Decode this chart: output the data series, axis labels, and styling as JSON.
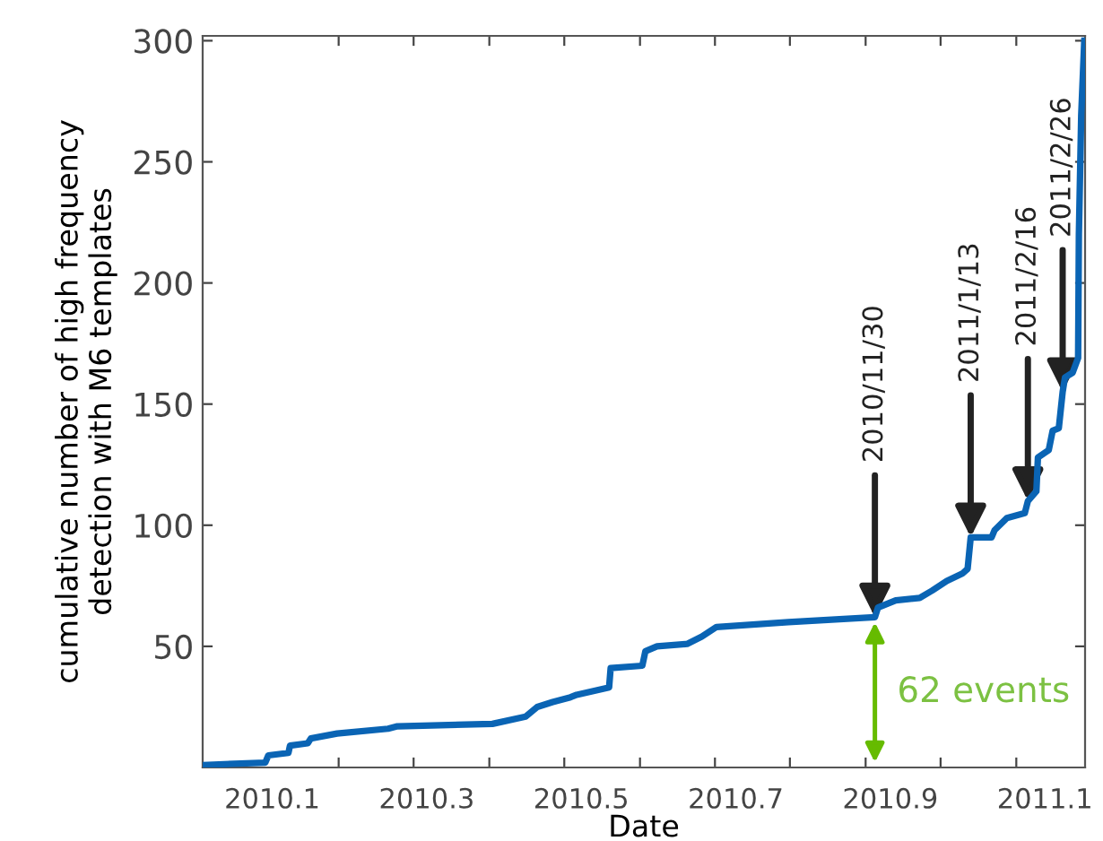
{
  "chart_data": {
    "type": "line",
    "xlabel": "Date",
    "ylabel": "cumulative number of high frequency\ndetection with M6 templates",
    "x": [
      2010.01,
      2010.091,
      2010.095,
      2010.121,
      2010.123,
      2010.146,
      2010.15,
      2010.184,
      2010.25,
      2010.262,
      2010.385,
      2010.428,
      2010.443,
      2010.463,
      2010.486,
      2010.494,
      2010.536,
      2010.538,
      2010.579,
      2010.583,
      2010.598,
      2010.637,
      2010.656,
      2010.675,
      2010.768,
      2010.88,
      2010.884,
      2010.907,
      2010.938,
      2010.954,
      2010.973,
      2010.993,
      2011.0,
      2011.004,
      2011.031,
      2011.035,
      2011.051,
      2011.074,
      2011.078,
      2011.089,
      2011.091,
      2011.105,
      2011.11,
      2011.118,
      2011.123,
      2011.126,
      2011.136,
      2011.143,
      2011.144,
      2011.147,
      2011.151
    ],
    "series": [
      {
        "color": "#0a64b4",
        "values": [
          1,
          2,
          5,
          6,
          9,
          10,
          12,
          14,
          16,
          17,
          18,
          21,
          25,
          27,
          29,
          30,
          33,
          41,
          42,
          48,
          50,
          51,
          54,
          58,
          60,
          62,
          66,
          69,
          70,
          73,
          77,
          80,
          82,
          95,
          95,
          98,
          103,
          105,
          110,
          114,
          128,
          131,
          139,
          140,
          155,
          161,
          163,
          169,
          220,
          269,
          300
        ]
      }
    ],
    "xlim": [
      2010.01,
      2011.152
    ],
    "ylim": [
      0,
      302
    ],
    "xticks": [
      {
        "value": 2010.1,
        "label": "2010.1"
      },
      {
        "value": 2010.186,
        "label": null
      },
      {
        "value": 2010.283,
        "label": null
      },
      {
        "value": 2010.3,
        "label": "2010.3"
      },
      {
        "value": 2010.381,
        "label": null
      },
      {
        "value": 2010.478,
        "label": null
      },
      {
        "value": 2010.5,
        "label": "2010.5"
      },
      {
        "value": 2010.576,
        "label": null
      },
      {
        "value": 2010.673,
        "label": null
      },
      {
        "value": 2010.7,
        "label": "2010.7"
      },
      {
        "value": 2010.77,
        "label": null
      },
      {
        "value": 2010.868,
        "label": null
      },
      {
        "value": 2010.9,
        "label": "2010.9"
      },
      {
        "value": 2010.965,
        "label": null
      },
      {
        "value": 2011.063,
        "label": null
      },
      {
        "value": 2011.1,
        "label": "2011.1"
      }
    ],
    "yticks": [
      50,
      100,
      150,
      200,
      250,
      300
    ],
    "grid": false,
    "legend": false,
    "marker": "none",
    "line_style": "solid",
    "annotations": [
      {
        "text": "2010/11/30",
        "x": 2010.88,
        "y": 62
      },
      {
        "text": "2011/1/13",
        "x": 2011.004,
        "y": 95
      },
      {
        "text": "2011/2/16",
        "x": 2011.078,
        "y": 110
      },
      {
        "text": "2011/2/26",
        "x": 2011.123,
        "y": 155
      },
      {
        "text": "62 events",
        "x": 2010.88,
        "y": 62
      }
    ]
  }
}
